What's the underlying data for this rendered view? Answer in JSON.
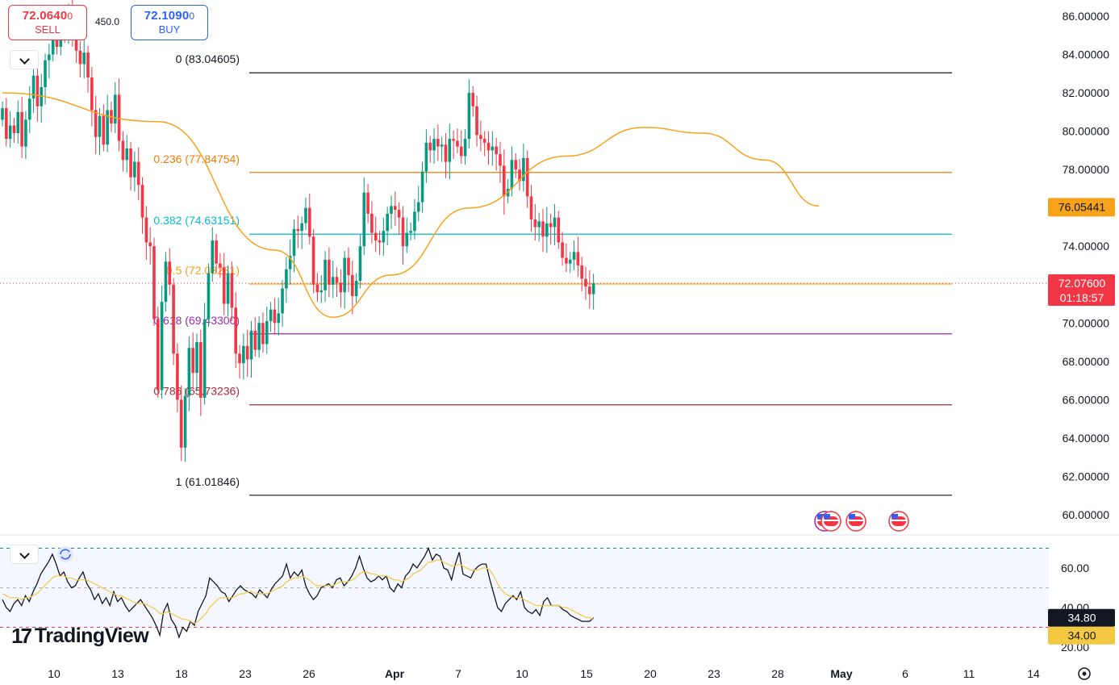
{
  "ticker": {
    "sell_price": "72.0640",
    "sell_price_small": "0",
    "sell_label": "SELL",
    "buy_price": "72.1090",
    "buy_price_small": "0",
    "buy_label": "BUY",
    "spread": "450.0"
  },
  "brand": {
    "logo_mark": "17",
    "logo_text": "TradingView"
  },
  "colors": {
    "up_candle": "#089981",
    "down_candle": "#f23645",
    "ma_line": "#f7a21b",
    "rsi_line": "#131722",
    "rsi_ma": "#f5c842"
  },
  "icons": [
    "chevron-down-icon",
    "refresh-icon",
    "us-flag-icon",
    "settings-icon"
  ],
  "chart_data": [
    {
      "type": "candlestick",
      "title": "",
      "ylim": [
        59.5,
        86.5
      ],
      "y_ticks": [
        "86.00000",
        "84.00000",
        "82.00000",
        "80.00000",
        "78.00000",
        "76.00000",
        "74.00000",
        "72.00000",
        "70.00000",
        "68.00000",
        "66.00000",
        "64.00000",
        "62.00000",
        "60.00000"
      ],
      "x_ticks": [
        "10",
        "13",
        "18",
        "23",
        "26",
        "Apr",
        "7",
        "10",
        "15",
        "20",
        "23",
        "28",
        "May",
        "6",
        "11",
        "14"
      ],
      "close_series": [
        81.2,
        79.6,
        80.3,
        79.9,
        81.0,
        79.2,
        80.6,
        81.7,
        82.9,
        81.3,
        82.3,
        83.7,
        84.0,
        85.2,
        84.4,
        85.8,
        85.1,
        86.2,
        85.0,
        84.2,
        83.5,
        84.1,
        82.8,
        81.1,
        79.7,
        80.8,
        79.3,
        81.1,
        80.4,
        81.9,
        79.5,
        78.5,
        79.1,
        77.6,
        78.4,
        77.2,
        75.5,
        74.2,
        74.0,
        70.2,
        66.5,
        71.1,
        73.2,
        72.0,
        68.4,
        66.0,
        63.5,
        66.2,
        68.7,
        67.4,
        69.0,
        66.1,
        70.2,
        72.6,
        74.3,
        73.1,
        72.9,
        71.0,
        72.6,
        70.8,
        68.4,
        67.9,
        68.8,
        68.1,
        69.6,
        68.6,
        70.0,
        68.9,
        70.1,
        70.7,
        70.0,
        70.5,
        71.8,
        72.8,
        73.5,
        74.9,
        74.8,
        75.2,
        76.0,
        74.5,
        72.0,
        71.6,
        71.7,
        73.3,
        72.0,
        72.4,
        72.1,
        71.6,
        73.4,
        72.5,
        71.4,
        72.2,
        74.0,
        76.8,
        75.7,
        74.7,
        74.3,
        74.2,
        74.8,
        75.7,
        76.1,
        75.9,
        75.5,
        74.0,
        74.7,
        74.8,
        75.8,
        76.3,
        77.9,
        79.4,
        79.0,
        79.6,
        79.2,
        79.3,
        78.4,
        79.6,
        79.5,
        79.2,
        78.7,
        79.6,
        82.0,
        81.3,
        79.8,
        79.6,
        79.4,
        79.0,
        79.2,
        78.8,
        78.2,
        76.6,
        77.0,
        78.5,
        78.0,
        77.4,
        78.6,
        76.6,
        75.4,
        75.0,
        75.3,
        74.5,
        75.2,
        75.0,
        75.5,
        74.2,
        73.4,
        73.1,
        73.3,
        73.7,
        73.0,
        72.3,
        71.9,
        71.5,
        72.07
      ],
      "ma_series": [
        {
          "name": "",
          "ma_at": [
            0,
            82.0,
            40,
            80.5,
            70,
            73.8,
            85,
            70.3,
            100,
            72.5,
            120,
            76.0,
            145,
            78.7,
            165,
            80.2,
            180,
            79.9,
            196,
            78.5,
            210,
            76.1
          ]
        }
      ],
      "last_price": "72.07600",
      "countdown": "01:18:57",
      "ma_value": "76.05441",
      "fibonacci": [
        {
          "level": "0",
          "value": 83.04605,
          "label": "0 (83.04605)",
          "color": "#131722"
        },
        {
          "level": "0.236",
          "value": 77.84754,
          "label": "0.236 (77.84754)",
          "color": "#f57c00"
        },
        {
          "level": "0.382",
          "value": 74.63151,
          "label": "0.382 (74.63151)",
          "color": "#00bcd4"
        },
        {
          "level": "0.5",
          "value": 72.03231,
          "label": "0.5 (72.03231)",
          "color": "#f7a21b"
        },
        {
          "level": "0.618",
          "value": 69.433,
          "label": "0.618 (69.43300)",
          "color": "#9c27b0"
        },
        {
          "level": "0.786",
          "value": 65.73236,
          "label": "0.786 (65.73236)",
          "color": "#b2283b"
        },
        {
          "level": "1",
          "value": 61.01846,
          "label": "1 (61.01846)",
          "color": "#131722"
        }
      ]
    },
    {
      "type": "line",
      "title": "",
      "ylim": [
        15,
        75
      ],
      "y_ticks": [
        "60.00",
        "40.00",
        "20.00"
      ],
      "overbought": 70,
      "oversold": 30,
      "middle": 50,
      "rsi_value": "34.80",
      "rsi_ma_value": "34.00",
      "series": [
        {
          "name": "",
          "values": [
            44,
            40,
            38,
            42,
            44,
            41,
            46,
            43,
            48,
            52,
            57,
            60,
            63,
            67,
            62,
            56,
            58,
            53,
            50,
            51,
            55,
            58,
            52,
            49,
            44,
            47,
            42,
            45,
            41,
            48,
            43,
            45,
            41,
            38,
            40,
            42,
            44,
            41,
            38,
            35,
            31,
            26,
            38,
            42,
            34,
            31,
            25,
            30,
            28,
            33,
            31,
            38,
            42,
            46,
            55,
            53,
            51,
            48,
            47,
            43,
            46,
            49,
            51,
            49,
            48,
            47,
            45,
            49,
            47,
            45,
            49,
            52,
            54,
            56,
            62,
            55,
            58,
            56,
            59,
            51,
            47,
            44,
            46,
            50,
            51,
            52,
            50,
            54,
            55,
            51,
            53,
            56,
            60,
            66,
            60,
            55,
            53,
            54,
            56,
            54,
            56,
            50,
            48,
            52,
            50,
            56,
            58,
            62,
            60,
            63,
            66,
            70,
            64,
            67,
            66,
            60,
            59,
            54,
            62,
            68,
            57,
            56,
            55,
            59,
            61,
            62,
            62,
            54,
            47,
            40,
            38,
            42,
            44,
            46,
            44,
            48,
            40,
            38,
            37,
            39,
            36,
            43,
            45,
            41,
            41,
            41,
            39,
            38,
            36,
            35,
            34,
            33,
            33,
            33,
            34.8
          ]
        },
        {
          "name": "",
          "values": [
            47,
            46,
            45,
            45,
            45,
            44,
            45,
            45,
            46,
            47,
            49,
            51,
            53,
            55,
            56,
            56,
            56,
            55,
            55,
            54,
            54,
            54,
            54,
            53,
            52,
            51,
            50,
            49,
            48,
            47,
            46,
            46,
            45,
            44,
            43,
            42,
            42,
            42,
            41,
            40,
            39,
            37,
            37,
            38,
            37,
            36,
            35,
            34,
            34,
            33,
            32,
            33,
            35,
            37,
            40,
            42,
            44,
            45,
            45,
            45,
            45,
            46,
            47,
            47,
            48,
            48,
            47,
            47,
            47,
            47,
            48,
            49,
            50,
            51,
            53,
            54,
            55,
            55,
            56,
            55,
            54,
            52,
            51,
            51,
            51,
            51,
            51,
            52,
            53,
            53,
            53,
            54,
            55,
            57,
            58,
            58,
            57,
            57,
            56,
            56,
            56,
            55,
            54,
            54,
            53,
            54,
            55,
            57,
            58,
            59,
            61,
            63,
            63,
            64,
            64,
            63,
            62,
            61,
            61,
            62,
            61,
            60,
            59,
            59,
            59,
            60,
            60,
            59,
            56,
            52,
            49,
            47,
            46,
            45,
            45,
            45,
            44,
            43,
            42,
            41,
            41,
            41,
            41,
            41,
            41,
            41,
            40,
            40,
            39,
            38,
            37,
            36,
            35,
            35,
            34.0
          ]
        }
      ]
    }
  ]
}
